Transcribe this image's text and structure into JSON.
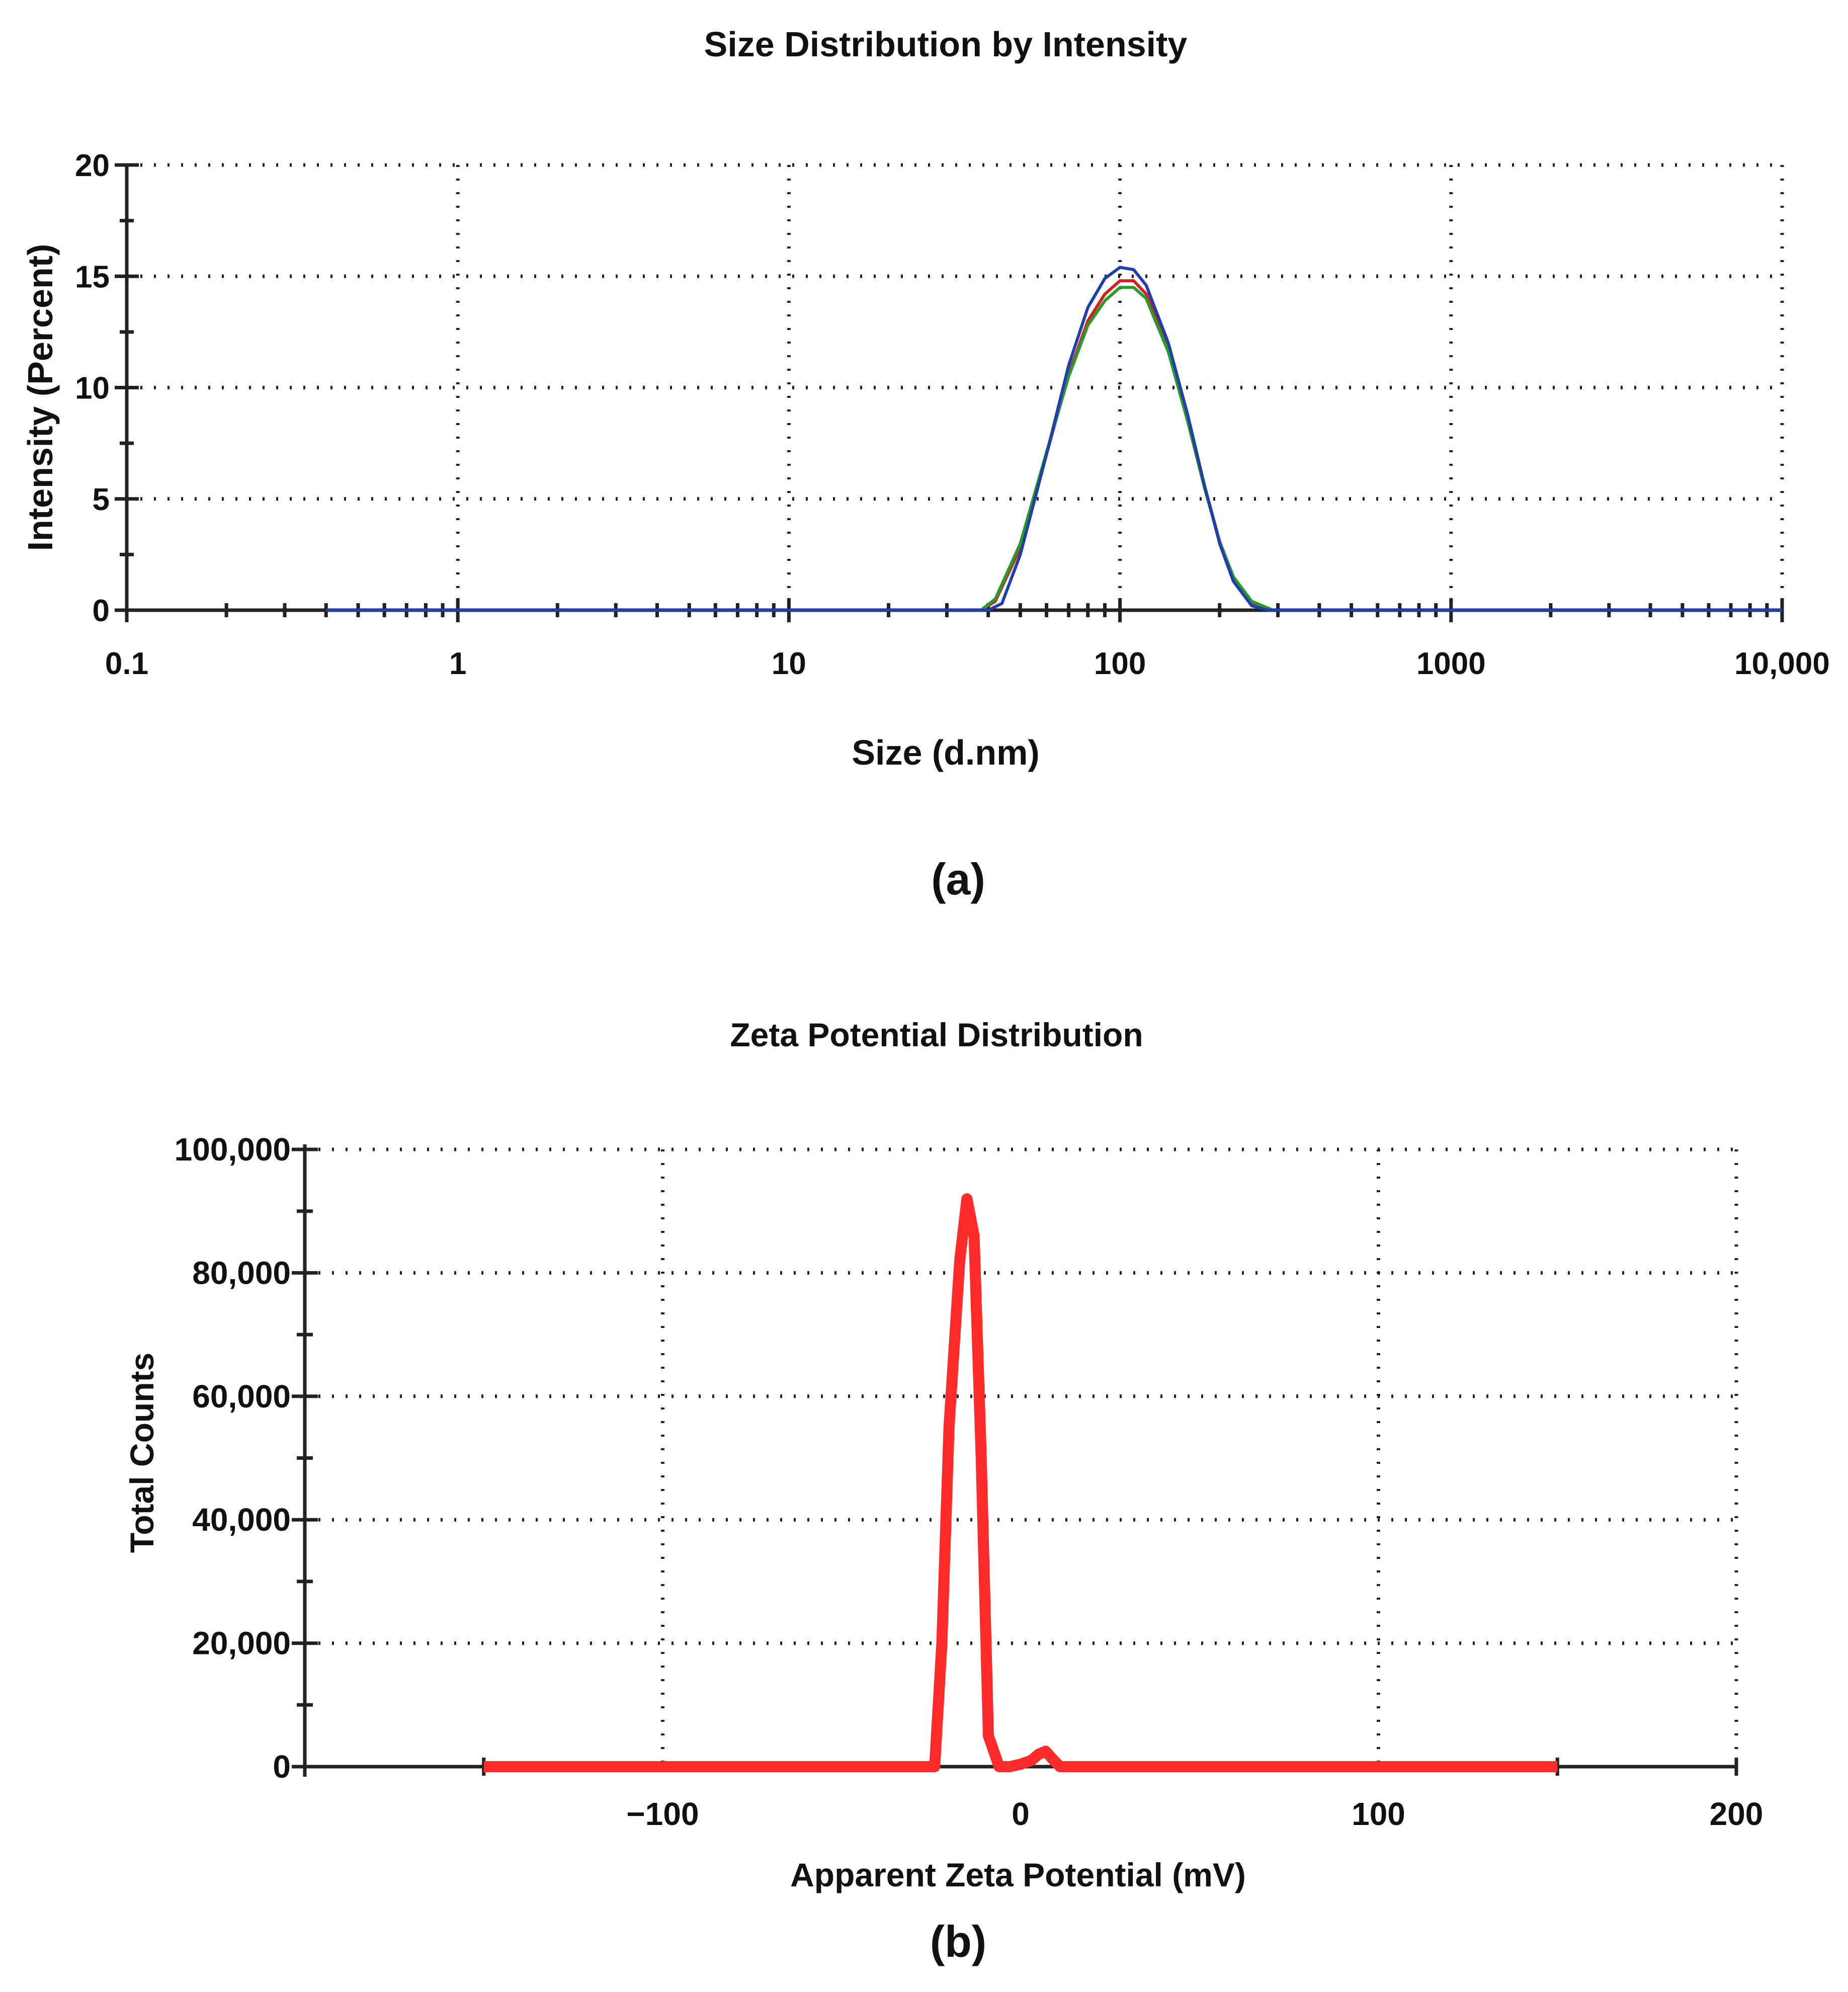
{
  "chart_data": [
    {
      "type": "line",
      "title": "Size Distribution by Intensity",
      "xlabel": "Size (d.nm)",
      "ylabel": "Intensity (Percent)",
      "x_scale": "log",
      "xlim": [
        0.1,
        10000
      ],
      "ylim": [
        0,
        20
      ],
      "x_tick_labels": [
        "0.1",
        "1",
        "10",
        "100",
        "1000",
        "10,000"
      ],
      "x_tick_values": [
        0.1,
        1,
        10,
        100,
        1000,
        10000
      ],
      "y_tick_labels": [
        "0",
        "5",
        "10",
        "15",
        "20"
      ],
      "y_tick_values": [
        0,
        5,
        10,
        15,
        20
      ],
      "grid": true,
      "panel_label": "(a)",
      "series": [
        {
          "color": "#d42020",
          "x": [
            0.4,
            38,
            42,
            50,
            60,
            70,
            80,
            90,
            100,
            110,
            120,
            140,
            160,
            180,
            200,
            220,
            250,
            280,
            10000
          ],
          "values": [
            0,
            0,
            0.4,
            2.8,
            7.0,
            10.6,
            13.0,
            14.2,
            14.8,
            14.8,
            14.2,
            11.8,
            8.7,
            5.6,
            3.1,
            1.4,
            0.3,
            0,
            0
          ]
        },
        {
          "color": "#2a9a2a",
          "x": [
            0.4,
            38,
            42,
            50,
            60,
            70,
            80,
            90,
            100,
            110,
            120,
            140,
            160,
            180,
            200,
            220,
            250,
            290,
            10000
          ],
          "values": [
            0,
            0,
            0.5,
            3.0,
            7.1,
            10.5,
            12.8,
            13.9,
            14.5,
            14.5,
            14.0,
            11.6,
            8.5,
            5.5,
            3.1,
            1.5,
            0.4,
            0,
            0
          ]
        },
        {
          "color": "#1f3faa",
          "x": [
            0.4,
            40,
            44,
            50,
            60,
            70,
            80,
            90,
            100,
            110,
            120,
            140,
            160,
            180,
            200,
            220,
            250,
            280,
            10000
          ],
          "values": [
            0,
            0,
            0.3,
            2.5,
            7.0,
            11.0,
            13.6,
            14.9,
            15.4,
            15.3,
            14.6,
            12.0,
            8.8,
            5.6,
            3.0,
            1.3,
            0.2,
            0,
            0
          ]
        }
      ]
    },
    {
      "type": "line",
      "title": "Zeta Potential Distribution",
      "xlabel": "Apparent Zeta Potential (mV)",
      "ylabel": "Total Counts",
      "xlim": [
        -200,
        200
      ],
      "ylim": [
        0,
        100000
      ],
      "x_tick_labels": [
        "−100",
        "0",
        "100",
        "200"
      ],
      "x_tick_values": [
        -100,
        0,
        100,
        200
      ],
      "y_tick_labels": [
        "0",
        "20,000",
        "40,000",
        "60,000",
        "80,000",
        "100,000"
      ],
      "y_tick_values": [
        0,
        20000,
        40000,
        60000,
        80000,
        100000
      ],
      "grid": true,
      "panel_label": "(b)",
      "series": [
        {
          "color": "#ff2a2a",
          "x": [
            -150,
            -24,
            -22,
            -20,
            -17,
            -15,
            -13,
            -11,
            -9,
            -6,
            -3,
            0,
            3,
            5,
            7,
            9,
            11,
            150
          ],
          "values": [
            0,
            0,
            20000,
            55000,
            82000,
            92000,
            86000,
            50000,
            5000,
            0,
            0,
            400,
            1000,
            2000,
            2500,
            1200,
            0,
            0
          ]
        }
      ]
    }
  ]
}
